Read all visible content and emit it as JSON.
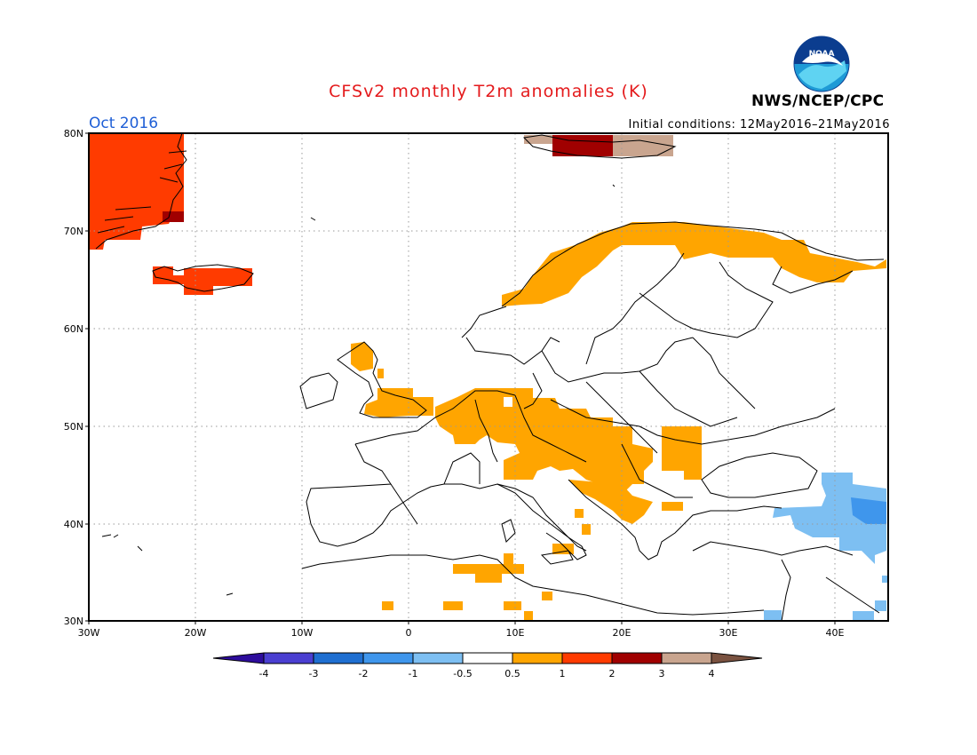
{
  "header": {
    "title": "CFSv2 monthly T2m anomalies (K)",
    "month": "Oct 2016",
    "initial_conditions": "Initial conditions: 12May2016–21May2016",
    "agency": "NWS/NCEP/CPC",
    "logo_text": "NOAA"
  },
  "axes": {
    "lat_labels": [
      "80N",
      "70N",
      "60N",
      "50N",
      "40N",
      "30N"
    ],
    "lon_labels": [
      "30W",
      "20W",
      "10W",
      "0",
      "10E",
      "20E",
      "30E",
      "40E"
    ]
  },
  "colorbar": {
    "labels": [
      "-4",
      "-3",
      "-2",
      "-1",
      "-0.5",
      "0.5",
      "1",
      "2",
      "3",
      "4"
    ],
    "colors": [
      "#2d0c9c",
      "#4a3fd1",
      "#1f6fd1",
      "#3f96ec",
      "#7dbff2",
      "#ffffff",
      "#ffa500",
      "#ff3b00",
      "#a00000",
      "#c9a58f",
      "#7a5240"
    ]
  },
  "anomaly_regions": [
    {
      "name": "greenland",
      "color": "#ff3b00"
    },
    {
      "name": "iceland",
      "color": "#ff3b00"
    },
    {
      "name": "svalbard",
      "color": "#a00000"
    },
    {
      "name": "scandinavia",
      "color": "#ffa500"
    },
    {
      "name": "central-europe",
      "color": "#ffa500"
    },
    {
      "name": "turkey-east",
      "color": "#7dbff2"
    }
  ]
}
